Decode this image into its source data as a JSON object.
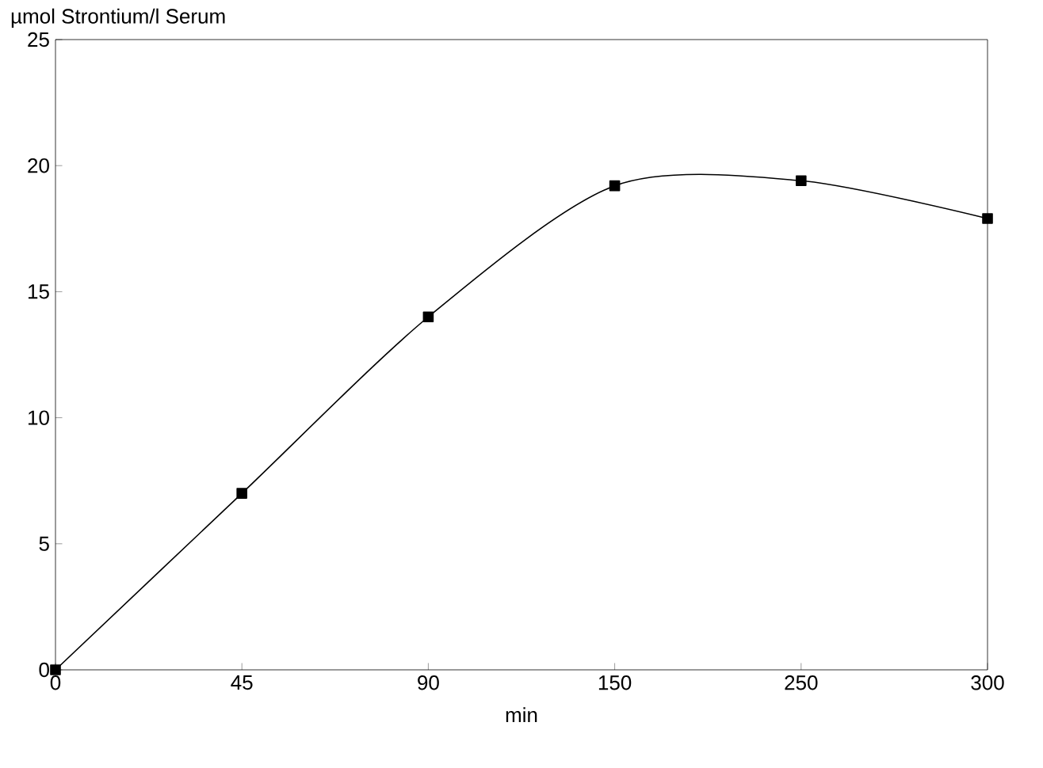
{
  "chart_data": {
    "type": "line",
    "ylabel": "µmol Strontium/l Serum",
    "xlabel": "min",
    "categories": [
      "0",
      "45",
      "90",
      "150",
      "250",
      "300"
    ],
    "series": [
      {
        "color": "#000000",
        "values": [
          0,
          7,
          14,
          19.2,
          19.4,
          17.9
        ]
      }
    ],
    "ylim": [
      0,
      25
    ],
    "yticks": [
      0,
      5,
      10,
      15,
      20,
      25
    ],
    "grid": false,
    "marker": "square",
    "line_style": "solid"
  }
}
